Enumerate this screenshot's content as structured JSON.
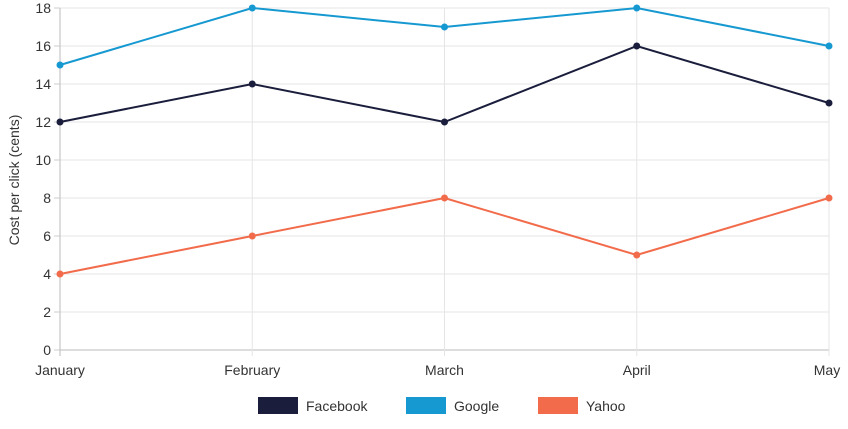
{
  "chart_data": {
    "type": "line",
    "title": "",
    "xlabel": "",
    "ylabel": "Cost per click (cents)",
    "categories": [
      "January",
      "February",
      "March",
      "April",
      "May"
    ],
    "ylim": [
      0,
      18
    ],
    "yticks": [
      0,
      2,
      4,
      6,
      8,
      10,
      12,
      14,
      16,
      18
    ],
    "grid": true,
    "legend_position": "bottom",
    "series": [
      {
        "name": "Facebook",
        "color": "#1a1d3b",
        "values": [
          12,
          14,
          12,
          16,
          13
        ]
      },
      {
        "name": "Google",
        "color": "#1699d1",
        "values": [
          15,
          18,
          17,
          18,
          16
        ]
      },
      {
        "name": "Yahoo",
        "color": "#f26b4b",
        "values": [
          4,
          6,
          8,
          5,
          8
        ]
      }
    ]
  }
}
